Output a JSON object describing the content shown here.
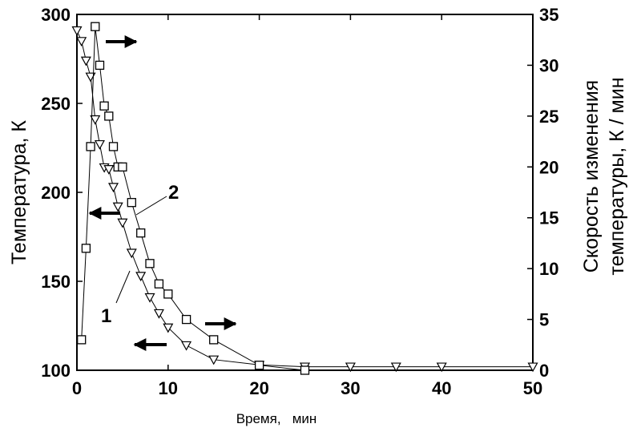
{
  "chart_data": {
    "type": "line",
    "xlabel": "Время,   мин",
    "ylabel_left": "Температура,   К",
    "ylabel_right_line1": "Скорость изменения",
    "ylabel_right_line2": "температуры,   К / мин",
    "xlim": [
      0,
      50
    ],
    "ylim_left": [
      100,
      300
    ],
    "ylim_right": [
      0,
      35
    ],
    "x_ticks": [
      "0",
      "10",
      "20",
      "30",
      "40",
      "50"
    ],
    "y_left_ticks": [
      "100",
      "150",
      "200",
      "250",
      "300"
    ],
    "y_right_ticks": [
      "0",
      "5",
      "10",
      "15",
      "20",
      "25",
      "30",
      "35"
    ],
    "grid": false,
    "series": [
      {
        "name": "1",
        "marker": "triangle-down",
        "axis": "left",
        "x": [
          0,
          0.5,
          1,
          1.5,
          2,
          2.5,
          3,
          3.5,
          4,
          4.5,
          5,
          6,
          7,
          8,
          9,
          10,
          12,
          15,
          20,
          25,
          30,
          35,
          40,
          50
        ],
        "y": [
          291,
          285,
          274,
          265,
          241,
          227,
          214,
          213,
          203,
          192,
          183,
          166,
          153,
          141,
          132,
          124,
          114,
          106,
          103,
          102,
          102,
          102,
          102,
          102
        ]
      },
      {
        "name": "2",
        "marker": "square",
        "axis": "right",
        "x": [
          0.5,
          1,
          1.5,
          2,
          2.5,
          3,
          3.5,
          4,
          4.5,
          5,
          6,
          7,
          8,
          9,
          10,
          12,
          15,
          20,
          25
        ],
        "y": [
          3,
          12,
          22,
          33.8,
          30,
          26,
          25,
          22,
          20,
          20,
          16.5,
          13.5,
          10.5,
          8.5,
          7.5,
          5,
          3,
          0.5,
          0
        ]
      }
    ],
    "annotations": {
      "curve_labels": [
        "1",
        "2"
      ],
      "arrows": [
        "right",
        "left",
        "left",
        "right"
      ]
    }
  }
}
